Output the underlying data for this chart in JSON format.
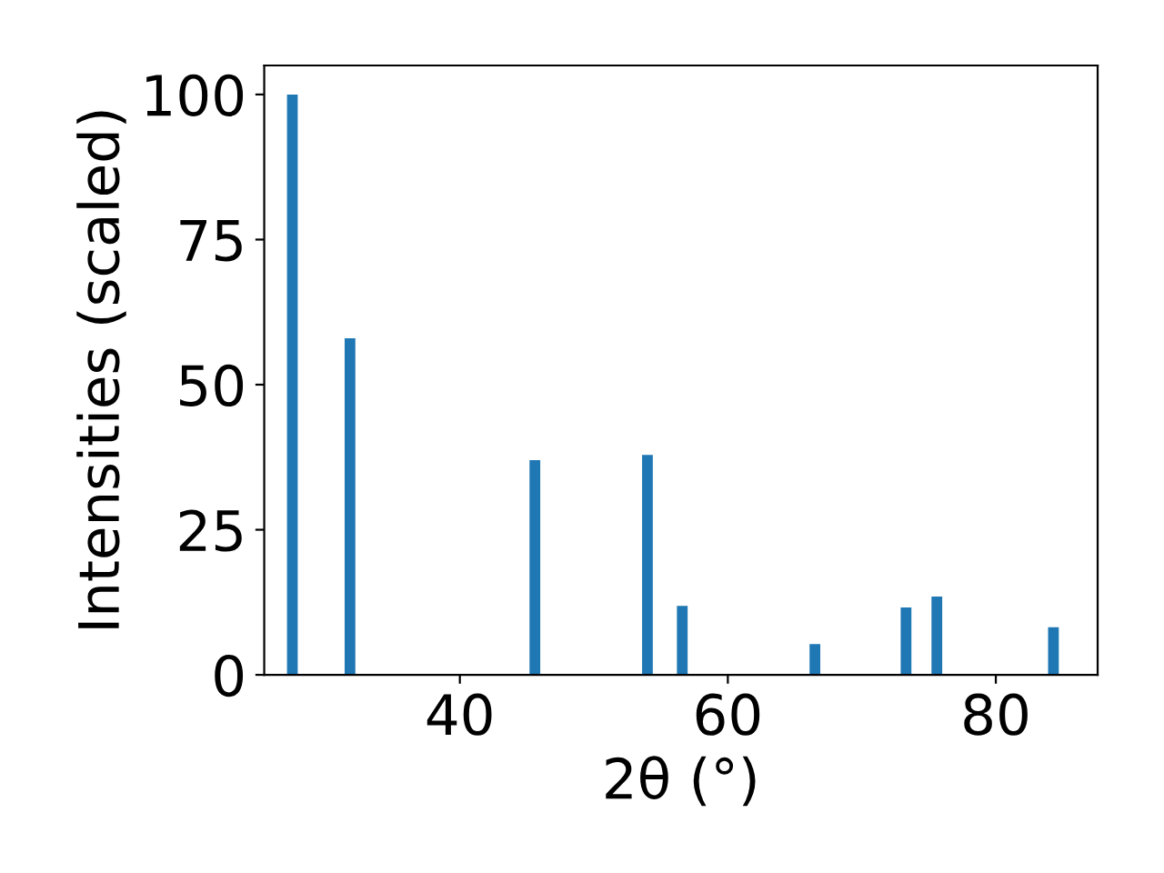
{
  "chart_data": {
    "type": "bar",
    "xlabel": "2θ (°)",
    "ylabel": "Intensities (scaled)",
    "x": [
      27.5,
      31.8,
      45.6,
      54.0,
      56.6,
      66.5,
      73.3,
      75.6,
      84.3
    ],
    "values": [
      100,
      58.0,
      37.0,
      37.9,
      11.9,
      5.3,
      11.6,
      13.5,
      8.2
    ],
    "color": "#1f77b4",
    "xlim": [
      25.4,
      87.6
    ],
    "ylim": [
      0,
      105
    ],
    "xticks": [
      40,
      60,
      80
    ],
    "yticks": [
      0,
      25,
      50,
      75,
      100
    ],
    "grid": false
  }
}
